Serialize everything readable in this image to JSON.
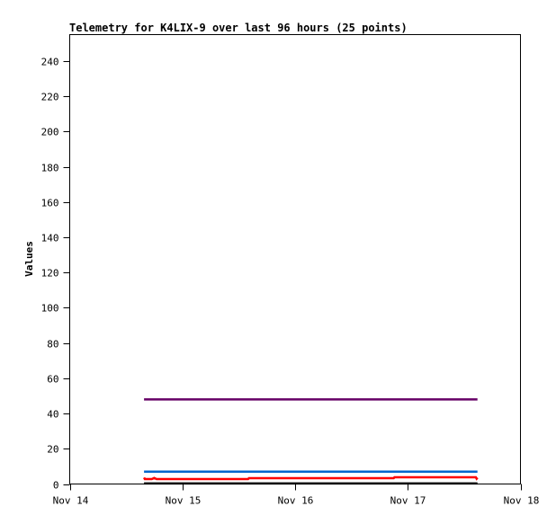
{
  "chart_data": {
    "type": "line",
    "title": "Telemetry for K4LIX-9 over last 96 hours (25 points)",
    "xlabel": "",
    "ylabel": "Values",
    "xlim": [
      "11-14 00:00",
      "11-18 00:00"
    ],
    "ylim": [
      0,
      255
    ],
    "x_ticks": [
      {
        "label": "Nov 14",
        "at": "11-14 00:00"
      },
      {
        "label": "Nov 15",
        "at": "11-15 00:00"
      },
      {
        "label": "Nov 16",
        "at": "11-16 00:00"
      },
      {
        "label": "Nov 17",
        "at": "11-17 00:00"
      },
      {
        "label": "Nov 18",
        "at": "11-18 00:00"
      }
    ],
    "y_ticks": [
      0,
      20,
      40,
      60,
      80,
      100,
      120,
      140,
      160,
      180,
      200,
      220,
      240
    ],
    "grid": false,
    "series": [
      {
        "color": "#660066",
        "points": [
          [
            "11-14 15:50",
            48
          ],
          [
            "11-17 14:50",
            48
          ]
        ]
      },
      {
        "color": "#0066cc",
        "points": [
          [
            "11-14 15:50",
            7
          ],
          [
            "11-17 14:50",
            7
          ]
        ]
      },
      {
        "color": "#ff0000",
        "points": [
          [
            "11-14 15:50",
            3.6
          ],
          [
            "11-14 16:00",
            2.8
          ],
          [
            "11-14 17:30",
            2.8
          ],
          [
            "11-14 18:00",
            3.4
          ],
          [
            "11-14 18:30",
            2.8
          ],
          [
            "11-15 14:00",
            2.8
          ],
          [
            "11-15 14:10",
            3.3
          ],
          [
            "11-16 21:00",
            3.3
          ],
          [
            "11-16 21:10",
            3.8
          ],
          [
            "11-17 14:30",
            3.8
          ],
          [
            "11-17 14:40",
            3.0
          ],
          [
            "11-17 14:50",
            3.6
          ]
        ]
      },
      {
        "color": "#000000",
        "points": [
          [
            "11-14 15:50",
            0.3
          ],
          [
            "11-17 14:50",
            0.3
          ]
        ]
      }
    ]
  }
}
